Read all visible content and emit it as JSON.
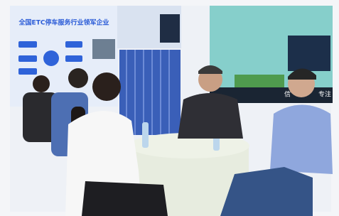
{
  "banner": {
    "title": "全国ETC停车服务行业领军企业"
  },
  "screen": {
    "left_fragment": "信",
    "right_fragment": "专注"
  }
}
